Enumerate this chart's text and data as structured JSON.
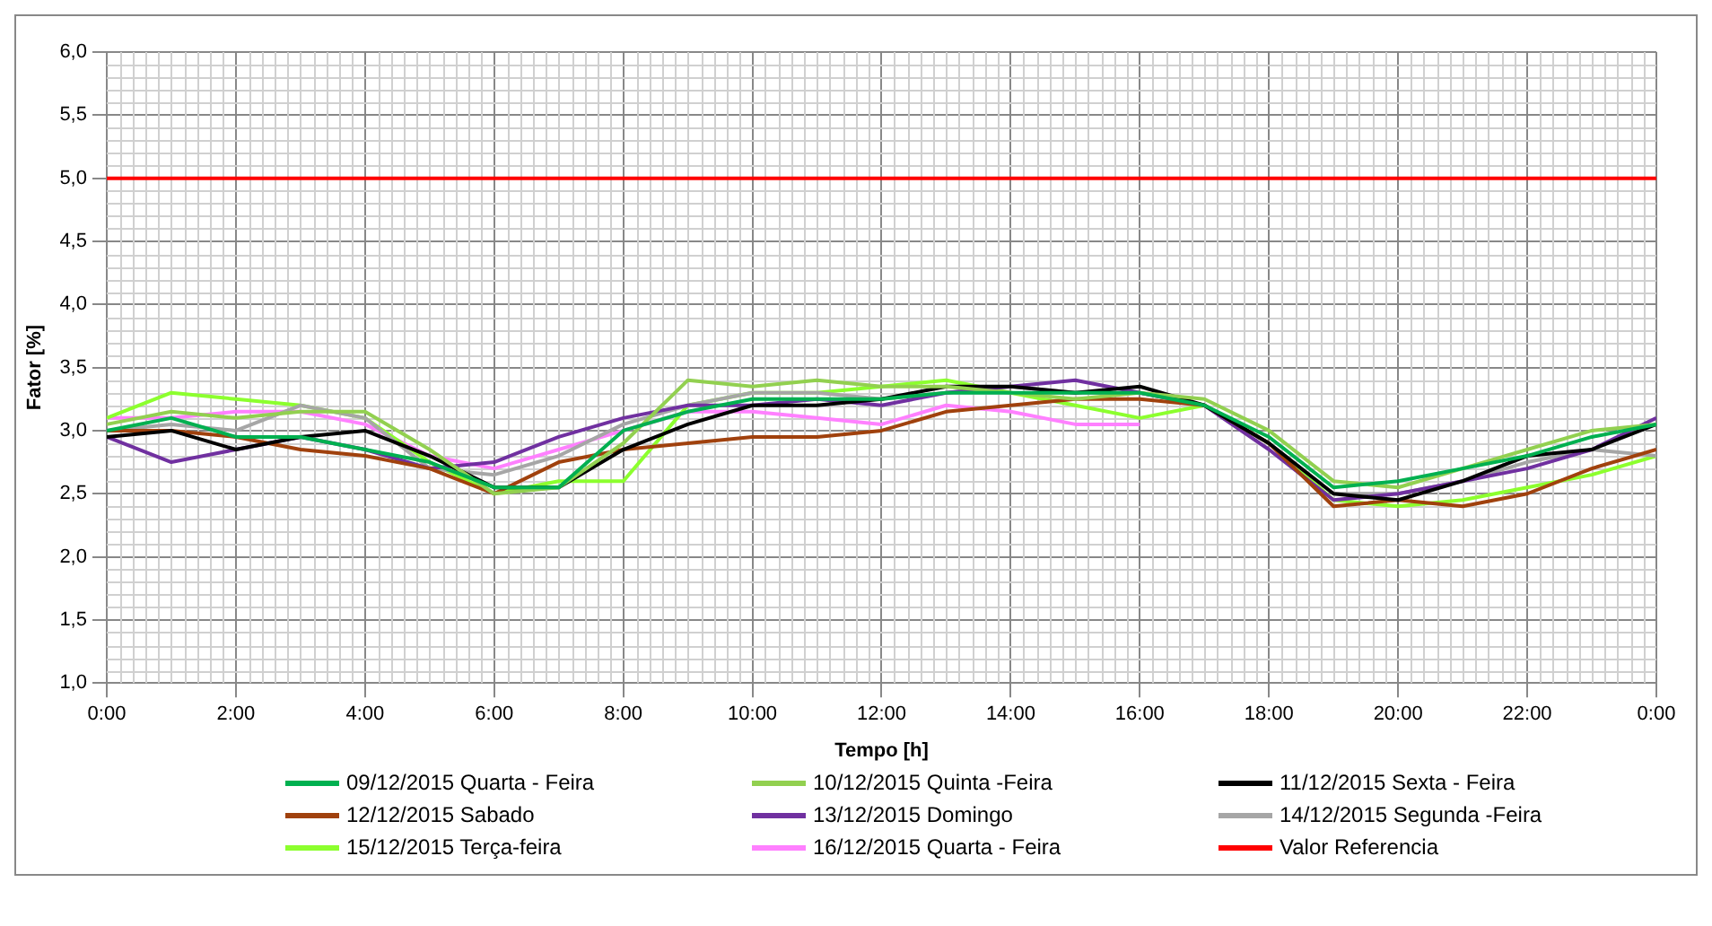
{
  "chart_data": {
    "type": "line",
    "xlabel": "Tempo [h]",
    "ylabel": "Fator [%]",
    "x": [
      0,
      1,
      2,
      3,
      4,
      5,
      6,
      7,
      8,
      9,
      10,
      11,
      12,
      13,
      14,
      15,
      16,
      17,
      18,
      19,
      20,
      21,
      22,
      23,
      24
    ],
    "series": [
      {
        "name": "09/12/2015 Quarta - Feira",
        "color": "#00b050",
        "values": [
          3.0,
          3.1,
          2.95,
          2.95,
          2.85,
          2.75,
          2.55,
          2.55,
          3.0,
          3.15,
          3.25,
          3.25,
          3.25,
          3.3,
          3.3,
          3.3,
          3.3,
          3.2,
          2.95,
          2.55,
          2.6,
          2.7,
          2.8,
          2.95,
          3.05
        ]
      },
      {
        "name": "10/12/2015 Quinta -Feira",
        "color": "#92d050",
        "values": [
          3.05,
          3.15,
          3.1,
          3.15,
          3.15,
          2.85,
          2.5,
          2.55,
          2.9,
          3.4,
          3.35,
          3.4,
          3.35,
          3.35,
          3.3,
          3.25,
          3.3,
          3.25,
          3.0,
          2.6,
          2.55,
          2.7,
          2.85,
          3.0,
          3.05
        ]
      },
      {
        "name": "11/12/2015 Sexta - Feira",
        "color": "#000000",
        "values": [
          2.95,
          3.0,
          2.85,
          2.95,
          3.0,
          2.8,
          2.55,
          2.55,
          2.85,
          3.05,
          3.2,
          3.2,
          3.25,
          3.35,
          3.35,
          3.3,
          3.35,
          3.2,
          2.9,
          2.5,
          2.45,
          2.6,
          2.8,
          2.85,
          3.05
        ]
      },
      {
        "name": "12/12/2015 Sabado",
        "color": "#a0410d",
        "values": [
          3.0,
          3.0,
          2.95,
          2.85,
          2.8,
          2.7,
          2.5,
          2.75,
          2.85,
          2.9,
          2.95,
          2.95,
          3.0,
          3.15,
          3.2,
          3.25,
          3.25,
          3.2,
          2.9,
          2.4,
          2.45,
          2.4,
          2.5,
          2.7,
          2.85
        ]
      },
      {
        "name": "13/12/2015 Domingo",
        "color": "#7030a0",
        "values": [
          2.95,
          2.75,
          2.85,
          2.95,
          2.85,
          2.7,
          2.75,
          2.95,
          3.1,
          3.2,
          3.2,
          3.25,
          3.2,
          3.3,
          3.35,
          3.4,
          3.3,
          3.2,
          2.85,
          2.45,
          2.5,
          2.6,
          2.7,
          2.85,
          3.1
        ]
      },
      {
        "name": "14/12/2015 Segunda -Feira",
        "color": "#a6a6a6",
        "values": [
          3.0,
          3.05,
          3.0,
          3.2,
          3.1,
          2.7,
          2.65,
          2.8,
          3.05,
          3.2,
          3.3,
          3.3,
          3.25,
          3.3,
          3.35,
          3.3,
          3.3,
          3.2,
          2.9,
          2.5,
          2.5,
          2.6,
          2.75,
          2.85,
          2.8
        ]
      },
      {
        "name": "15/12/2015 Terça-feira",
        "color": "#8cff2e",
        "values": [
          3.1,
          3.3,
          3.25,
          3.2,
          3.1,
          2.75,
          2.5,
          2.6,
          2.6,
          3.2,
          3.3,
          3.3,
          3.35,
          3.4,
          3.3,
          3.2,
          3.1,
          3.2,
          2.9,
          2.45,
          2.4,
          2.45,
          2.55,
          2.65,
          2.8
        ]
      },
      {
        "name": "16/12/2015 Quarta - Feira",
        "color": "#ff80ff",
        "values": [
          3.1,
          3.1,
          3.15,
          3.15,
          3.05,
          2.8,
          2.7,
          2.85,
          3.0,
          3.15,
          3.15,
          3.1,
          3.05,
          3.2,
          3.15,
          3.05,
          3.05,
          null,
          null,
          null,
          null,
          null,
          null,
          null,
          null
        ]
      },
      {
        "name": "Valor Referencia",
        "color": "#ff0000",
        "x": [
          0,
          24
        ],
        "values": [
          5,
          5
        ]
      }
    ],
    "xlim": [
      0,
      24
    ],
    "xticks": [
      {
        "value": 0,
        "label": "0:00"
      },
      {
        "value": 2,
        "label": "2:00"
      },
      {
        "value": 4,
        "label": "4:00"
      },
      {
        "value": 6,
        "label": "6:00"
      },
      {
        "value": 8,
        "label": "8:00"
      },
      {
        "value": 10,
        "label": "10:00"
      },
      {
        "value": 12,
        "label": "12:00"
      },
      {
        "value": 14,
        "label": "14:00"
      },
      {
        "value": 16,
        "label": "16:00"
      },
      {
        "value": 18,
        "label": "18:00"
      },
      {
        "value": 20,
        "label": "20:00"
      },
      {
        "value": 22,
        "label": "22:00"
      },
      {
        "value": 24,
        "label": "0:00"
      }
    ],
    "ylim": [
      1,
      6
    ],
    "yticks": [
      {
        "value": 1,
        "label": "1,0"
      },
      {
        "value": 1.5,
        "label": "1,5"
      },
      {
        "value": 2,
        "label": "2,0"
      },
      {
        "value": 2.5,
        "label": "2,5"
      },
      {
        "value": 3,
        "label": "3,0"
      },
      {
        "value": 3.5,
        "label": "3,5"
      },
      {
        "value": 4,
        "label": "4,0"
      },
      {
        "value": 4.5,
        "label": "4,5"
      },
      {
        "value": 5,
        "label": "5,0"
      },
      {
        "value": 5.5,
        "label": "5,5"
      },
      {
        "value": 6,
        "label": "6,0"
      }
    ],
    "grid": true,
    "legend": "bottom",
    "marker": "none",
    "line_style": "solid"
  }
}
